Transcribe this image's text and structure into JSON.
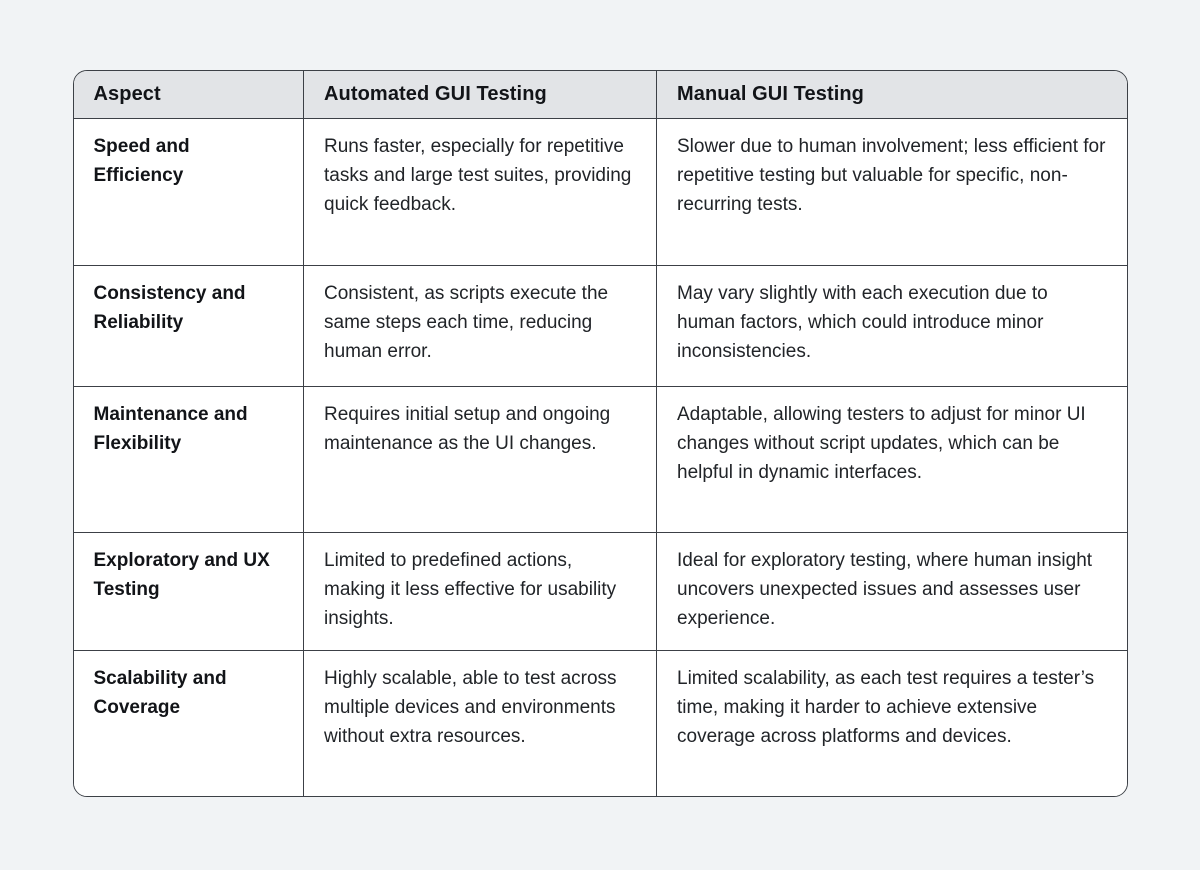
{
  "page": {
    "background_color": "#f1f3f5",
    "card_border_color": "#3c4046",
    "header_bg_color": "#e2e4e7",
    "body_bg_color": "#ffffff"
  },
  "table": {
    "headers": [
      "Aspect",
      "Automated GUI Testing",
      "Manual GUI Testing"
    ],
    "rows": [
      {
        "aspect": "Speed and Efficiency",
        "automated": "Runs faster, especially for repetitive tasks and large test suites, providing quick feedback.",
        "manual": "Slower due to human involvement; less efficient for repetitive testing but valuable for specific, non-recurring tests."
      },
      {
        "aspect": "Consistency and Reliability",
        "automated": "Consistent, as scripts execute the same steps each time, reducing human error.",
        "manual": "May vary slightly with each execution due to human factors, which could introduce minor inconsistencies."
      },
      {
        "aspect": "Maintenance and Flexibility",
        "automated": "Requires initial setup and ongoing maintenance as the UI changes.",
        "manual": "Adaptable, allowing testers to adjust for minor UI changes without script updates, which can be helpful in dynamic interfaces."
      },
      {
        "aspect": "Exploratory and UX Testing",
        "automated": "Limited to predefined actions, making it less effective for usability insights.",
        "manual": "Ideal for exploratory testing, where human insight uncovers unexpected issues and assesses user experience."
      },
      {
        "aspect": "Scalability and Coverage",
        "automated": "Highly scalable, able to test across multiple devices and environments without extra resources.",
        "manual": "Limited scalability, as each test requires a tester’s time, making it harder to achieve extensive coverage across platforms and devices."
      }
    ]
  }
}
